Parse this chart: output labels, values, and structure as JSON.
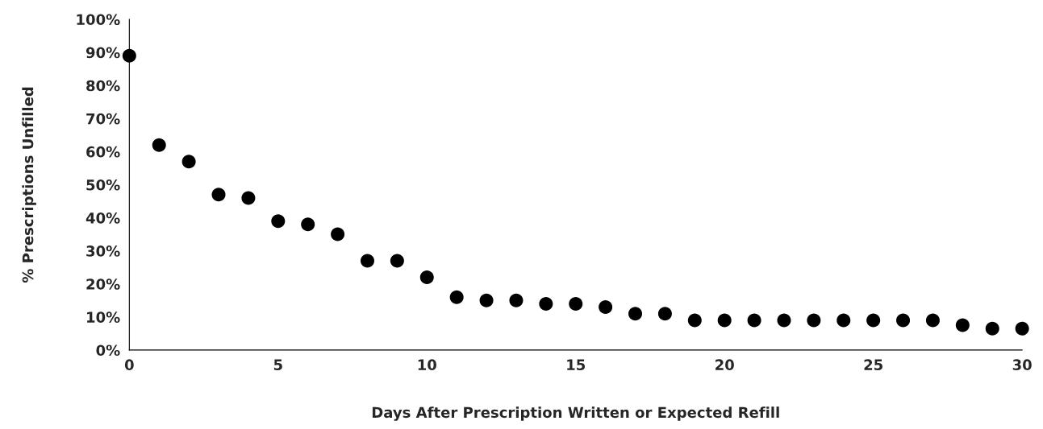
{
  "chart_data": {
    "type": "scatter",
    "xlabel": "Days After Prescription Written or Expected Refill",
    "ylabel": "% Prescriptions Unfilled",
    "x": [
      0,
      1,
      2,
      3,
      4,
      5,
      6,
      7,
      8,
      9,
      10,
      11,
      12,
      13,
      14,
      15,
      16,
      17,
      18,
      19,
      20,
      21,
      22,
      23,
      24,
      25,
      26,
      27,
      28,
      29,
      30
    ],
    "series": [
      {
        "color": "#000000",
        "values": [
          89,
          62,
          57,
          47,
          46,
          39,
          38,
          35,
          27,
          27,
          22,
          16,
          15,
          15,
          14,
          14,
          13,
          11,
          11,
          9,
          9,
          9,
          9,
          9,
          9,
          9,
          9,
          9,
          7.5,
          6.5,
          6.5
        ]
      }
    ],
    "xlim": [
      0,
      30
    ],
    "xticks": [
      0,
      5,
      10,
      15,
      20,
      25,
      30
    ],
    "ylim": [
      0,
      100
    ],
    "yticks": [
      {
        "value": 0,
        "label": "0%"
      },
      {
        "value": 10,
        "label": "10%"
      },
      {
        "value": 20,
        "label": "20%"
      },
      {
        "value": 30,
        "label": "30%"
      },
      {
        "value": 40,
        "label": "40%"
      },
      {
        "value": 50,
        "label": "50%"
      },
      {
        "value": 60,
        "label": "60%"
      },
      {
        "value": 70,
        "label": "70%"
      },
      {
        "value": 80,
        "label": "80%"
      },
      {
        "value": 90,
        "label": "90%"
      },
      {
        "value": 100,
        "label": "100%"
      }
    ],
    "marker": "circle",
    "grid": false,
    "legend": false
  }
}
